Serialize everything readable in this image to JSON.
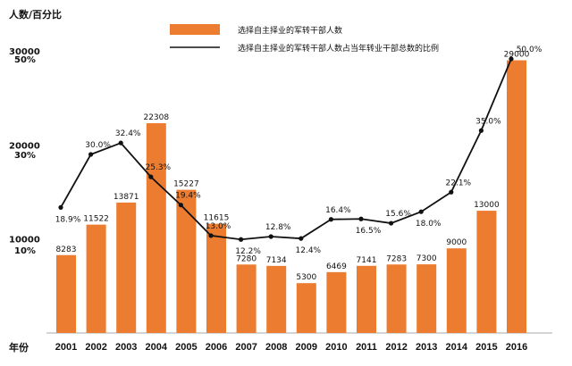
{
  "chart_data": {
    "type": "bar",
    "y_axis_title": "人数/百分比",
    "x_axis_title": "年份",
    "categories": [
      "2001",
      "2002",
      "2003",
      "2004",
      "2005",
      "2006",
      "2007",
      "2008",
      "2009",
      "2010",
      "2011",
      "2012",
      "2013",
      "2014",
      "2015",
      "2016"
    ],
    "series": [
      {
        "name": "选择自主择业的军转干部人数",
        "type": "bar",
        "color": "#ec7c30",
        "values": [
          8283,
          11522,
          13871,
          22308,
          15227,
          11615,
          7280,
          7134,
          5300,
          6469,
          7141,
          7283,
          7300,
          9000,
          13000,
          29000
        ],
        "labels": [
          "8283",
          "11522",
          "13871",
          "22308",
          "15227",
          "11615",
          "7280",
          "7134",
          "5300",
          "6469",
          "7141",
          "7283",
          "7300",
          "9000",
          "13000",
          "29000"
        ]
      },
      {
        "name": "选择自主择业的军转干部人数占当年转业干部总数的比例",
        "type": "line",
        "color": "#111111",
        "values": [
          18.9,
          30.0,
          32.4,
          25.3,
          19.4,
          13.0,
          12.2,
          12.8,
          12.4,
          16.4,
          16.5,
          15.6,
          18.0,
          22.1,
          35.0,
          50.0
        ],
        "labels": [
          "18.9%",
          "30.0%",
          "32.4%",
          "25.3%",
          "19.4%",
          "13.0%",
          "12.2%",
          "12.8%",
          "12.4%",
          "16.4%",
          "16.5%",
          "15.6%",
          "18.0%",
          "22.1%",
          "35.0%",
          "50.0%"
        ]
      }
    ],
    "y_ticks_count": [
      "10000",
      "20000",
      "30000"
    ],
    "y_ticks_percent": [
      "10%",
      "30%",
      "50%"
    ],
    "legend_position": "top-center"
  }
}
